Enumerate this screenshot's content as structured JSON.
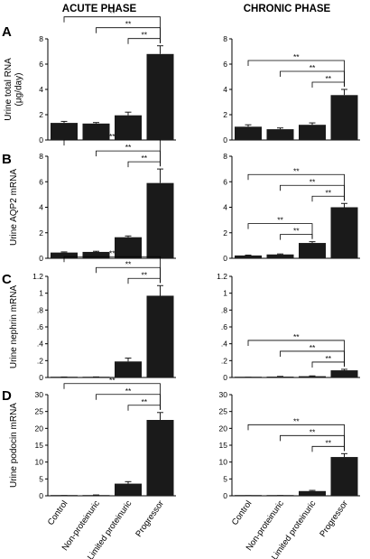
{
  "phases": {
    "acute": "ACUTE PHASE",
    "chronic": "CHRONIC PHASE"
  },
  "categories": [
    "Control",
    "Non-proteinuric",
    "Limited proteinuric",
    "Progressor"
  ],
  "colors": {
    "bar": "#1a1a1a",
    "axis": "#000000"
  },
  "chart_data": [
    {
      "panel": "A",
      "phase": "acute",
      "type": "bar",
      "ylabel": "Urine total RNA (μg/day)",
      "ylim": [
        0,
        8
      ],
      "yticks": [
        0,
        2,
        4,
        6,
        8
      ],
      "ytick_labels": [
        "0",
        "2",
        "4",
        "6",
        "8"
      ],
      "values": [
        1.35,
        1.3,
        1.95,
        6.8
      ],
      "errors": [
        0.12,
        0.08,
        0.25,
        0.65
      ],
      "significance": [
        {
          "from": 0,
          "to": 3,
          "label": "**"
        },
        {
          "from": 1,
          "to": 3,
          "label": "**"
        },
        {
          "from": 2,
          "to": 3,
          "label": "**"
        }
      ]
    },
    {
      "panel": "A",
      "phase": "chronic",
      "type": "bar",
      "ylabel": "",
      "ylim": [
        0,
        8
      ],
      "yticks": [
        0,
        2,
        4,
        6,
        8
      ],
      "ytick_labels": [
        "0",
        "2",
        "4",
        "6",
        "8"
      ],
      "values": [
        1.05,
        0.85,
        1.2,
        3.55
      ],
      "errors": [
        0.15,
        0.1,
        0.15,
        0.45
      ],
      "significance": [
        {
          "from": 0,
          "to": 3,
          "label": "**"
        },
        {
          "from": 1,
          "to": 3,
          "label": "**"
        },
        {
          "from": 2,
          "to": 3,
          "label": "**"
        }
      ]
    },
    {
      "panel": "B",
      "phase": "acute",
      "type": "bar",
      "ylabel": "Urine AQP2 mRNA",
      "ylim": [
        0,
        8
      ],
      "yticks": [
        0,
        2,
        4,
        6,
        8
      ],
      "ytick_labels": [
        "0",
        "2",
        "4",
        "6",
        "8"
      ],
      "values": [
        0.45,
        0.5,
        1.65,
        5.9
      ],
      "errors": [
        0.05,
        0.05,
        0.1,
        1.1
      ],
      "significance": [
        {
          "from": 0,
          "to": 3,
          "label": "**"
        },
        {
          "from": 1,
          "to": 3,
          "label": "**"
        },
        {
          "from": 2,
          "to": 3,
          "label": "**"
        }
      ]
    },
    {
      "panel": "B",
      "phase": "chronic",
      "type": "bar",
      "ylabel": "",
      "ylim": [
        0,
        8
      ],
      "yticks": [
        0,
        2,
        4,
        6,
        8
      ],
      "ytick_labels": [
        "0",
        "2",
        "4",
        "6",
        "8"
      ],
      "values": [
        0.22,
        0.3,
        1.2,
        4.0
      ],
      "errors": [
        0.03,
        0.04,
        0.1,
        0.3
      ],
      "significance": [
        {
          "from": 0,
          "to": 3,
          "label": "**"
        },
        {
          "from": 1,
          "to": 3,
          "label": "**"
        },
        {
          "from": 2,
          "to": 3,
          "label": "**"
        },
        {
          "from": 0,
          "to": 2,
          "label": "**"
        },
        {
          "from": 1,
          "to": 2,
          "label": "**"
        }
      ]
    },
    {
      "panel": "C",
      "phase": "acute",
      "type": "bar",
      "ylabel": "Urine nephrin mRNA",
      "ylim": [
        0,
        1.2
      ],
      "yticks": [
        0,
        0.2,
        0.4,
        0.6,
        0.8,
        1.0,
        1.2
      ],
      "ytick_labels": [
        "0",
        ".2",
        ".4",
        ".6",
        ".8",
        "1",
        "1.2"
      ],
      "values": [
        0.004,
        0.005,
        0.19,
        0.97
      ],
      "errors": [
        0.002,
        0.002,
        0.04,
        0.12
      ],
      "significance": [
        {
          "from": 0,
          "to": 3,
          "label": "**"
        },
        {
          "from": 1,
          "to": 3,
          "label": "**"
        },
        {
          "from": 2,
          "to": 3,
          "label": "**"
        }
      ]
    },
    {
      "panel": "C",
      "phase": "chronic",
      "type": "bar",
      "ylabel": "",
      "ylim": [
        0,
        1.2
      ],
      "yticks": [
        0,
        0.2,
        0.4,
        0.6,
        0.8,
        1.0,
        1.2
      ],
      "ytick_labels": [
        "0",
        ".2",
        ".4",
        ".6",
        ".8",
        "1",
        "1.2"
      ],
      "values": [
        0.002,
        0.01,
        0.015,
        0.085
      ],
      "errors": [
        0.001,
        0.003,
        0.004,
        0.012
      ],
      "significance": [
        {
          "from": 0,
          "to": 3,
          "label": "**"
        },
        {
          "from": 1,
          "to": 3,
          "label": "**"
        },
        {
          "from": 2,
          "to": 3,
          "label": "**"
        }
      ]
    },
    {
      "panel": "D",
      "phase": "acute",
      "type": "bar",
      "ylabel": "Urine podocin mRNA",
      "ylim": [
        0,
        30
      ],
      "yticks": [
        0,
        5,
        10,
        15,
        20,
        25,
        30
      ],
      "ytick_labels": [
        "0",
        "5",
        "10",
        "15",
        "20",
        "25",
        "30"
      ],
      "values": [
        0.05,
        0.2,
        3.6,
        22.5
      ],
      "errors": [
        0.02,
        0.05,
        0.6,
        2.2
      ],
      "significance": [
        {
          "from": 0,
          "to": 3,
          "label": "**"
        },
        {
          "from": 1,
          "to": 3,
          "label": "**"
        },
        {
          "from": 2,
          "to": 3,
          "label": "**"
        }
      ]
    },
    {
      "panel": "D",
      "phase": "chronic",
      "type": "bar",
      "ylabel": "",
      "ylim": [
        0,
        30
      ],
      "yticks": [
        0,
        5,
        10,
        15,
        20,
        25,
        30
      ],
      "ytick_labels": [
        "0",
        "5",
        "10",
        "15",
        "20",
        "25",
        "30"
      ],
      "values": [
        0.02,
        0.05,
        1.4,
        11.5
      ],
      "errors": [
        0.01,
        0.02,
        0.2,
        1.0
      ],
      "significance": [
        {
          "from": 0,
          "to": 3,
          "label": "**"
        },
        {
          "from": 1,
          "to": 3,
          "label": "**"
        },
        {
          "from": 2,
          "to": 3,
          "label": "**"
        }
      ]
    }
  ]
}
